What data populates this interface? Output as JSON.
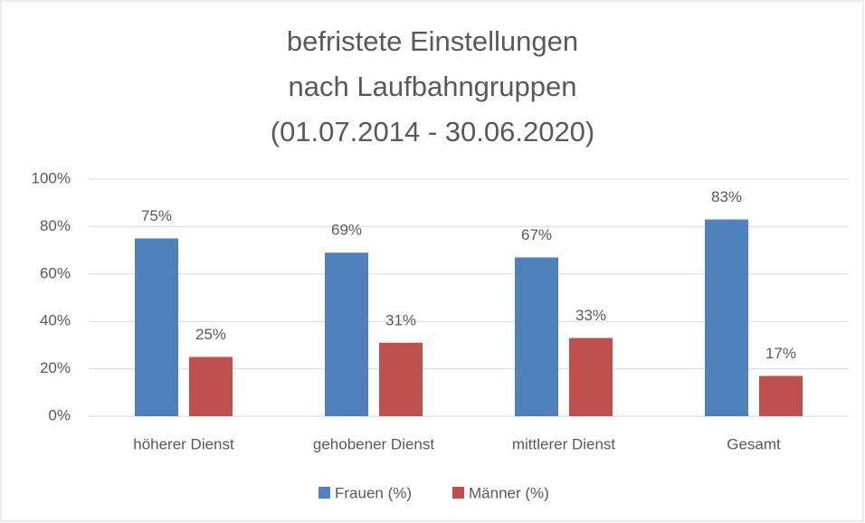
{
  "chart_data": {
    "type": "bar",
    "title": [
      "befristete Einstellungen",
      "nach Laufbahngruppen",
      "(01.07.2014 - 30.06.2020)"
    ],
    "categories": [
      "höherer Dienst",
      "gehobener Dienst",
      "mittlerer Dienst",
      "Gesamt"
    ],
    "series": [
      {
        "name": "Frauen (%)",
        "color": "#4f81bd",
        "values": [
          75,
          69,
          67,
          83
        ],
        "value_labels": [
          "75%",
          "69%",
          "67%",
          "83%"
        ]
      },
      {
        "name": "Männer (%)",
        "color": "#c0504d",
        "values": [
          25,
          31,
          33,
          17
        ],
        "value_labels": [
          "25%",
          "31%",
          "33%",
          "17%"
        ]
      }
    ],
    "ylim": [
      0,
      100
    ],
    "yticks": [
      {
        "value": 0,
        "label": "0%"
      },
      {
        "value": 20,
        "label": "20%"
      },
      {
        "value": 40,
        "label": "40%"
      },
      {
        "value": 60,
        "label": "60%"
      },
      {
        "value": 80,
        "label": "80%"
      },
      {
        "value": 100,
        "label": "100%"
      }
    ],
    "grid": true,
    "legend": "bottom"
  }
}
